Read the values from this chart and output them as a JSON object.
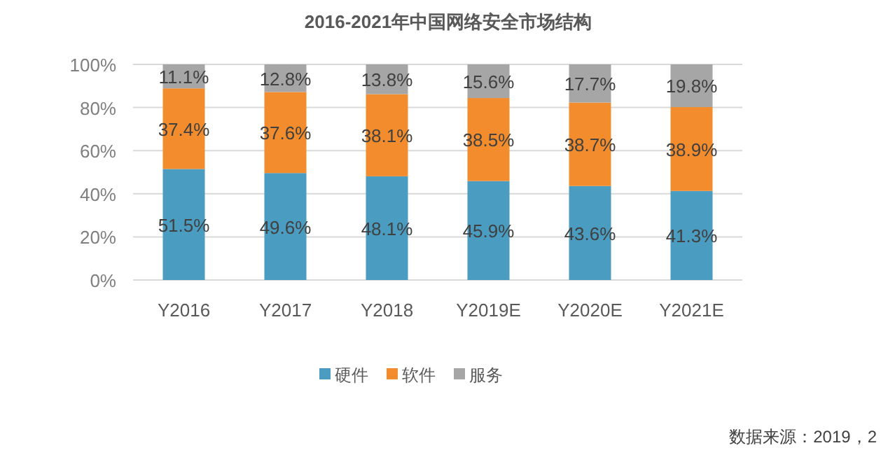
{
  "chart_data": {
    "type": "bar",
    "stacked": true,
    "title": "2016-2021年中国网络安全市场结构",
    "categories": [
      "Y2016",
      "Y2017",
      "Y2018",
      "Y2019E",
      "Y2020E",
      "Y2021E"
    ],
    "series": [
      {
        "name": "硬件",
        "color": "#4a9cc0",
        "values": [
          51.5,
          49.6,
          48.1,
          45.9,
          43.6,
          41.3
        ],
        "value_labels": [
          "51.5%",
          "49.6%",
          "48.1%",
          "45.9%",
          "43.6%",
          "41.3%"
        ]
      },
      {
        "name": "软件",
        "color": "#f28c2c",
        "values": [
          37.4,
          37.6,
          38.1,
          38.5,
          38.7,
          38.9
        ],
        "value_labels": [
          "37.4%",
          "37.6%",
          "38.1%",
          "38.5%",
          "38.7%",
          "38.9%"
        ]
      },
      {
        "name": "服务",
        "color": "#a6a6a6",
        "values": [
          11.1,
          12.8,
          13.8,
          15.6,
          17.7,
          19.8
        ],
        "value_labels": [
          "11.1%",
          "12.8%",
          "13.8%",
          "15.6%",
          "17.7%",
          "19.8%"
        ]
      }
    ],
    "ylim": [
      0,
      100
    ],
    "yticks": [
      {
        "value": 0,
        "label": "0%"
      },
      {
        "value": 20,
        "label": "20%"
      },
      {
        "value": 40,
        "label": "40%"
      },
      {
        "value": 60,
        "label": "60%"
      },
      {
        "value": 80,
        "label": "80%"
      },
      {
        "value": 100,
        "label": "100%"
      }
    ],
    "grid": "y",
    "legend": "bottom",
    "annotations": [
      "数据来源：2019，2"
    ]
  }
}
